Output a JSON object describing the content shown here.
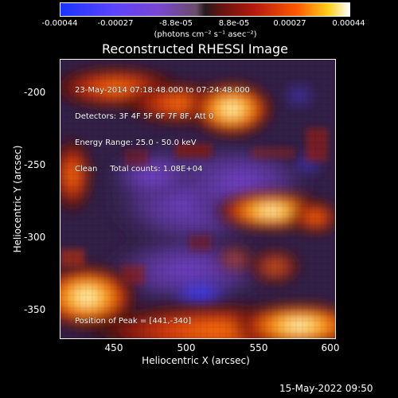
{
  "colorbar": {
    "labels": [
      "-0.00044",
      "-0.00027",
      "-8.8e-05",
      "8.8e-05",
      "0.00027",
      "0.00044"
    ]
  },
  "units": "(photons cm⁻² s⁻¹ asec⁻²)",
  "title": "Reconstructed RHESSI Image",
  "info_lines": [
    "23-May-2014 07:18:48.000 to 07:24:48.000",
    "Detectors: 3F 4F 5F 6F 7F 8F, Att 0",
    "Energy Range: 25.0 - 50.0 keV",
    "Clean     Total counts: 1.08E+04"
  ],
  "peak": "Position of Peak = [441,-340]",
  "axes": {
    "x_ticks": [
      "450",
      "500",
      "550",
      "600"
    ],
    "y_ticks": [
      "-200",
      "-250",
      "-300",
      "-350"
    ],
    "x_label": "Heliocentric X (arcsec)",
    "y_label": "Heliocentric Y (arcsec)"
  },
  "timestamp": "15-May-2022 09:50"
}
